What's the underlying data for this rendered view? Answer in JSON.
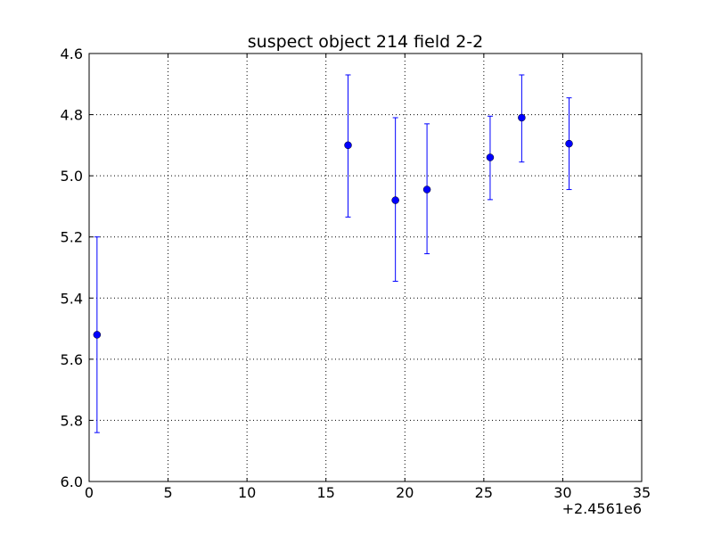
{
  "chart_data": {
    "type": "scatter",
    "title": "suspect object 214 field 2-2",
    "xlabel": "",
    "ylabel": "",
    "x_offset_label": "+2.4561e6",
    "xlim": [
      0,
      35
    ],
    "ylim": [
      4.6,
      6.0
    ],
    "y_inverted": true,
    "grid": true,
    "x_ticks": [
      0,
      5,
      10,
      15,
      20,
      25,
      30,
      35
    ],
    "x_tick_labels": [
      "0",
      "5",
      "10",
      "15",
      "20",
      "25",
      "30",
      "35"
    ],
    "y_ticks": [
      4.6,
      4.8,
      5.0,
      5.2,
      5.4,
      5.6,
      5.8,
      6.0
    ],
    "y_tick_labels": [
      "4.6",
      "4.8",
      "5.0",
      "5.2",
      "5.4",
      "5.6",
      "5.8",
      "6.0"
    ],
    "series": [
      {
        "color": "#0000ff",
        "points": [
          {
            "x": 0.5,
            "y": 5.52,
            "yerr_low": 5.2,
            "yerr_high": 5.84
          },
          {
            "x": 16.4,
            "y": 4.9,
            "yerr_low": 4.67,
            "yerr_high": 5.135
          },
          {
            "x": 19.4,
            "y": 5.08,
            "yerr_low": 4.81,
            "yerr_high": 5.345
          },
          {
            "x": 21.4,
            "y": 5.045,
            "yerr_low": 4.83,
            "yerr_high": 5.255
          },
          {
            "x": 25.4,
            "y": 4.94,
            "yerr_low": 4.805,
            "yerr_high": 5.078
          },
          {
            "x": 27.4,
            "y": 4.81,
            "yerr_low": 4.67,
            "yerr_high": 4.955
          },
          {
            "x": 30.4,
            "y": 4.895,
            "yerr_low": 4.745,
            "yerr_high": 5.045
          }
        ]
      }
    ]
  }
}
